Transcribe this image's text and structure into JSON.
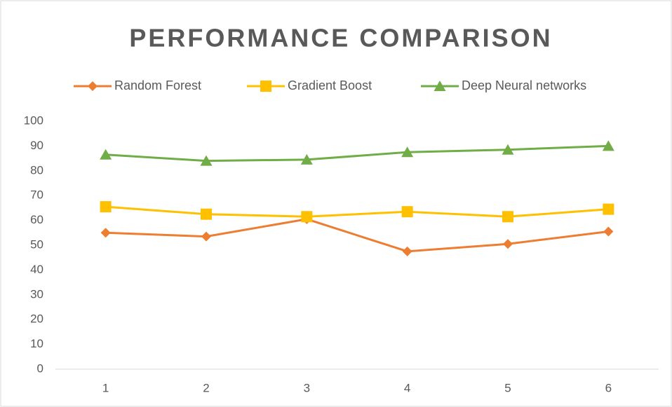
{
  "chart_data": {
    "type": "line",
    "title": "PERFORMANCE COMPARISON",
    "categories": [
      "1",
      "2",
      "3",
      "4",
      "5",
      "6"
    ],
    "series": [
      {
        "name": "Random Forest",
        "color": "#ed7d31",
        "marker": "diamond",
        "values": [
          55,
          53.5,
          60.5,
          47.5,
          50.5,
          55.5
        ]
      },
      {
        "name": "Gradient Boost",
        "color": "#ffc000",
        "marker": "square",
        "values": [
          65.5,
          62.5,
          61.5,
          63.5,
          61.5,
          64.5
        ]
      },
      {
        "name": "Deep Neural networks",
        "color": "#70ad47",
        "marker": "triangle",
        "values": [
          86.5,
          84,
          84.5,
          87.5,
          88.5,
          90
        ]
      }
    ],
    "ylim": [
      0,
      100
    ],
    "yticks": [
      0,
      10,
      20,
      30,
      40,
      50,
      60,
      70,
      80,
      90,
      100
    ],
    "grid": false,
    "legend": "top"
  }
}
